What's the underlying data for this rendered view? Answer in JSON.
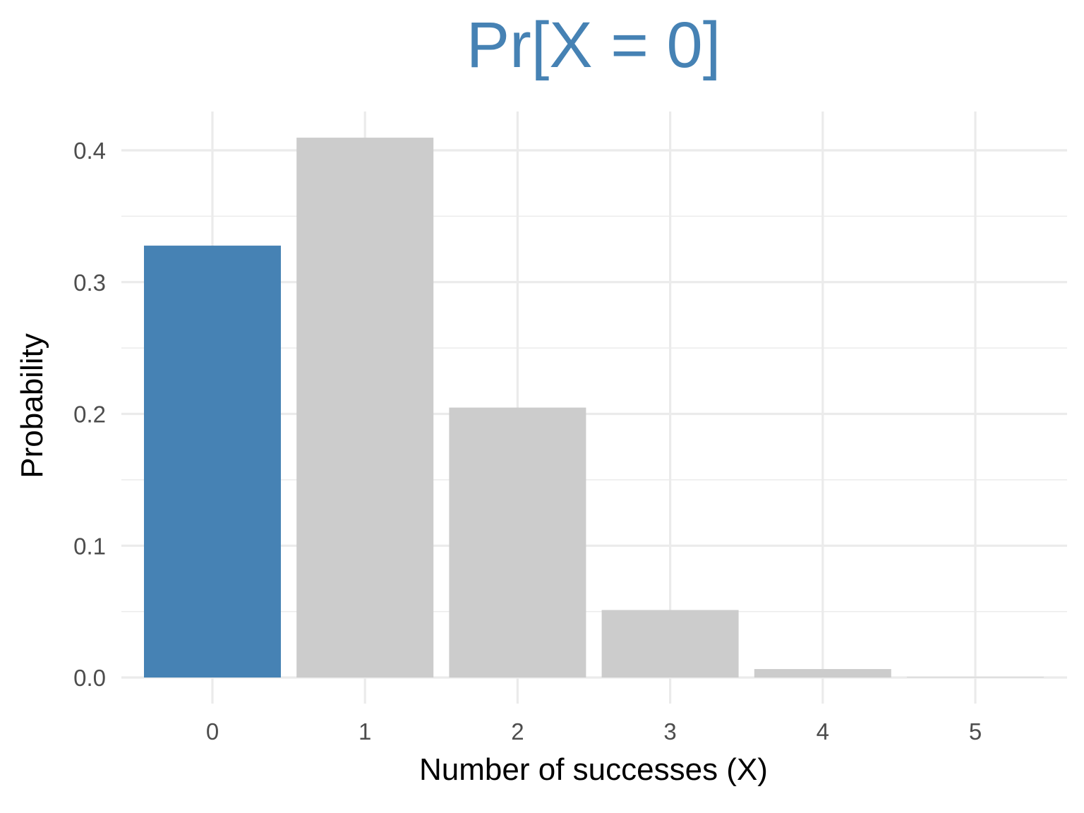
{
  "chart_data": {
    "type": "bar",
    "title": "Pr[X = 0]",
    "xlabel": "Number of successes (X)",
    "ylabel": "Probability",
    "categories": [
      "0",
      "1",
      "2",
      "3",
      "4",
      "5"
    ],
    "values": [
      0.32768,
      0.4096,
      0.2048,
      0.0512,
      0.0064,
      0.00032
    ],
    "highlight_index": 0,
    "yticks": [
      "0.0",
      "0.1",
      "0.2",
      "0.3",
      "0.4"
    ],
    "ylim": [
      -0.02,
      0.43
    ],
    "grid": true,
    "legend": "none",
    "colors": {
      "title": "#4682b4",
      "highlight_bar": "#4682b4",
      "default_bar": "#cccccc",
      "grid": "#ebebeb",
      "tick_text": "#4d4d4d",
      "axis_title": "#000000",
      "background": "#ffffff"
    }
  }
}
